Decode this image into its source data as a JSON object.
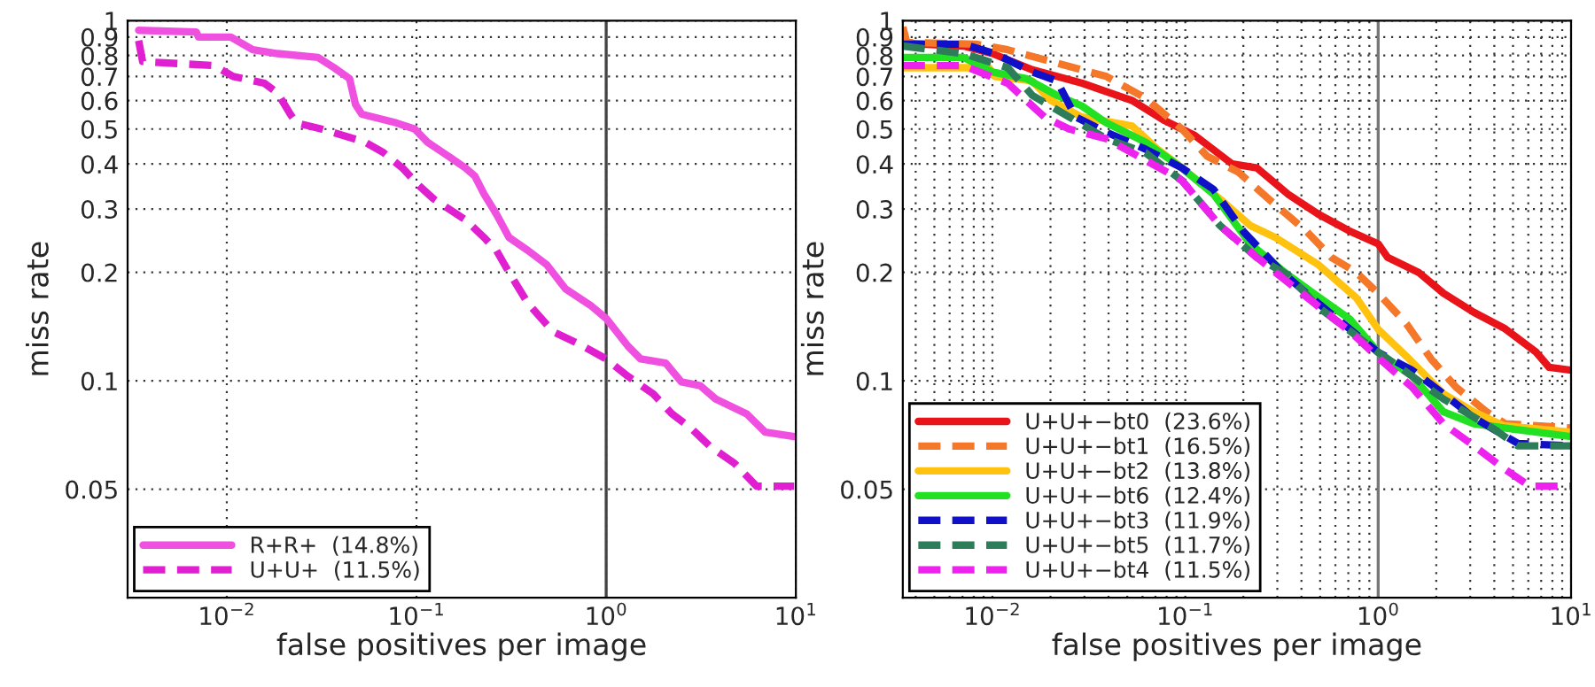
{
  "chart_data": [
    {
      "type": "line",
      "xlabel": "false positives per image",
      "ylabel": "miss rate",
      "log": "xy",
      "grid": true,
      "legend": "bottom left",
      "xlim": [
        0.003,
        10
      ],
      "ylim": [
        0.025,
        1
      ],
      "xticks": [
        {
          "value": 0.01,
          "label": "10$^{−2}$"
        },
        {
          "value": 0.1,
          "label": "10$^{−1}$"
        },
        {
          "value": 1,
          "label": "10$^{0}$"
        },
        {
          "value": 10,
          "label": "10$^{1}$"
        }
      ],
      "yticks": [
        0.05,
        0.1,
        0.2,
        0.3,
        0.4,
        0.5,
        0.6,
        0.7,
        0.8,
        0.9,
        1
      ],
      "ref_lines": [
        {
          "axis": "x",
          "value": 1,
          "color": "#444444",
          "line_style": "solid"
        }
      ],
      "series": [
        {
          "name": "R+R+  (14.8%)",
          "color": "#f050e0",
          "line_style": "solid",
          "x": [
            0.00343,
            0.0069,
            0.0071,
            0.0105,
            0.0137,
            0.0185,
            0.0303,
            0.0368,
            0.0444,
            0.0477,
            0.0515,
            0.0783,
            0.098,
            0.114,
            0.138,
            0.181,
            0.203,
            0.227,
            0.264,
            0.3075,
            0.387,
            0.486,
            0.61,
            0.827,
            1,
            1.3,
            1.52,
            2.06,
            2.49,
            3.13,
            3.78,
            5.5,
            6.9,
            9.8
          ],
          "values": [
            0.94,
            0.93,
            0.9,
            0.9,
            0.83,
            0.81,
            0.79,
            0.74,
            0.69,
            0.585,
            0.55,
            0.52,
            0.5,
            0.46,
            0.43,
            0.39,
            0.37,
            0.33,
            0.29,
            0.25,
            0.23,
            0.21,
            0.18,
            0.162,
            0.149,
            0.125,
            0.115,
            0.112,
            0.0993,
            0.097,
            0.089,
            0.081,
            0.072,
            0.07
          ]
        },
        {
          "name": "U+U+  (11.5%)",
          "color": "#e020d0",
          "line_style": "dashed",
          "x": [
            0.00343,
            0.0036,
            0.0086,
            0.0108,
            0.0158,
            0.0185,
            0.0216,
            0.0233,
            0.0316,
            0.0536,
            0.067,
            0.0843,
            0.102,
            0.123,
            0.181,
            0.227,
            0.264,
            0.3075,
            0.387,
            0.524,
            0.71,
            1,
            1.3,
            1.77,
            2.22,
            2.79,
            3.5,
            4.75,
            6.2,
            9.8
          ],
          "values": [
            0.88,
            0.77,
            0.75,
            0.7,
            0.67,
            0.63,
            0.55,
            0.52,
            0.5,
            0.46,
            0.43,
            0.39,
            0.35,
            0.32,
            0.28,
            0.25,
            0.23,
            0.2,
            0.164,
            0.137,
            0.127,
            0.115,
            0.103,
            0.092,
            0.081,
            0.074,
            0.066,
            0.059,
            0.051,
            0.051
          ]
        }
      ]
    },
    {
      "type": "line",
      "xlabel": "false positives per image",
      "ylabel": "miss rate",
      "log": "xy",
      "grid": true,
      "legend": "bottom left",
      "xlim": [
        0.00343,
        10
      ],
      "ylim": [
        0.025,
        1
      ],
      "xticks": [
        {
          "value": 0.004,
          "label": null
        },
        {
          "value": 0.005,
          "label": null
        },
        {
          "value": 0.006,
          "label": null
        },
        {
          "value": 0.007,
          "label": null
        },
        {
          "value": 0.008,
          "label": null
        },
        {
          "value": 0.009,
          "label": null
        },
        {
          "value": 0.01,
          "label": "10$^{−2}$"
        },
        {
          "value": 0.02,
          "label": null
        },
        {
          "value": 0.03,
          "label": null
        },
        {
          "value": 0.04,
          "label": null
        },
        {
          "value": 0.05,
          "label": null
        },
        {
          "value": 0.06,
          "label": null
        },
        {
          "value": 0.07,
          "label": null
        },
        {
          "value": 0.08,
          "label": null
        },
        {
          "value": 0.09,
          "label": null
        },
        {
          "value": 0.1,
          "label": "10$^{−1}$"
        },
        {
          "value": 0.2,
          "label": null
        },
        {
          "value": 0.3,
          "label": null
        },
        {
          "value": 0.4,
          "label": null
        },
        {
          "value": 0.5,
          "label": null
        },
        {
          "value": 0.6,
          "label": null
        },
        {
          "value": 0.7,
          "label": null
        },
        {
          "value": 0.8,
          "label": null
        },
        {
          "value": 0.9,
          "label": null
        },
        {
          "value": 1,
          "label": "10$^{0}$"
        },
        {
          "value": 2,
          "label": null
        },
        {
          "value": 3,
          "label": null
        },
        {
          "value": 4,
          "label": null
        },
        {
          "value": 5,
          "label": null
        },
        {
          "value": 6,
          "label": null
        },
        {
          "value": 7,
          "label": null
        },
        {
          "value": 8,
          "label": null
        },
        {
          "value": 9,
          "label": null
        },
        {
          "value": 10,
          "label": "10$^{1}$"
        }
      ],
      "yticks": [
        0.05,
        0.1,
        0.2,
        0.3,
        0.4,
        0.5,
        0.6,
        0.7,
        0.8,
        0.9,
        1
      ],
      "ref_lines": [
        {
          "axis": "x",
          "value": 1,
          "color": "#777777",
          "line_style": "solid"
        }
      ],
      "series": [
        {
          "name": "U+U+−bt0  (23.6%)",
          "color": "#e8141a",
          "line_style": "solid",
          "x": [
            0.00343,
            0.0071,
            0.01,
            0.0161,
            0.0216,
            0.0292,
            0.053,
            0.077,
            0.112,
            0.175,
            0.235,
            0.34,
            0.49,
            0.716,
            1,
            1.12,
            1.62,
            2.18,
            3.13,
            4.5,
            6.6,
            7.7,
            10
          ],
          "values": [
            0.865,
            0.85,
            0.81,
            0.73,
            0.7,
            0.67,
            0.6,
            0.53,
            0.48,
            0.4,
            0.39,
            0.33,
            0.29,
            0.26,
            0.24,
            0.22,
            0.2,
            0.175,
            0.155,
            0.14,
            0.12,
            0.109,
            0.107
          ]
        },
        {
          "name": "U+U+−bt1  (16.5%)",
          "color": "#f5782a",
          "line_style": "dashed",
          "x": [
            0.00343,
            0.0036,
            0.0082,
            0.012,
            0.0201,
            0.029,
            0.039,
            0.062,
            0.096,
            0.13,
            0.188,
            0.27,
            0.425,
            0.573,
            0.77,
            1,
            1.4,
            1.88,
            2.53,
            3.65,
            4.56,
            10
          ],
          "values": [
            0.96,
            0.87,
            0.86,
            0.83,
            0.77,
            0.73,
            0.7,
            0.61,
            0.5,
            0.42,
            0.38,
            0.32,
            0.26,
            0.22,
            0.2,
            0.175,
            0.144,
            0.115,
            0.096,
            0.082,
            0.076,
            0.074
          ]
        },
        {
          "name": "U+U+−bt2  (13.8%)",
          "color": "#ffc20e",
          "line_style": "solid",
          "x": [
            0.00343,
            0.0096,
            0.0103,
            0.0161,
            0.0201,
            0.029,
            0.053,
            0.0715,
            0.096,
            0.151,
            0.217,
            0.293,
            0.49,
            0.77,
            1,
            1.4,
            2.18,
            3.13,
            4.5,
            10
          ],
          "values": [
            0.74,
            0.74,
            0.7,
            0.68,
            0.6,
            0.54,
            0.51,
            0.44,
            0.39,
            0.32,
            0.27,
            0.25,
            0.21,
            0.17,
            0.139,
            0.117,
            0.092,
            0.082,
            0.075,
            0.072
          ]
        },
        {
          "name": "U+U+−bt6  (12.4%)",
          "color": "#22e022",
          "line_style": "solid",
          "x": [
            0.00343,
            0.0071,
            0.01,
            0.015,
            0.0216,
            0.029,
            0.039,
            0.062,
            0.096,
            0.14,
            0.217,
            0.34,
            0.49,
            0.716,
            1,
            1.5,
            2.18,
            3.13,
            4.5,
            10
          ],
          "values": [
            0.79,
            0.79,
            0.72,
            0.69,
            0.62,
            0.58,
            0.52,
            0.46,
            0.39,
            0.33,
            0.24,
            0.197,
            0.171,
            0.148,
            0.12,
            0.103,
            0.082,
            0.076,
            0.074,
            0.07
          ]
        },
        {
          "name": "U+U+−bt3  (11.9%)",
          "color": "#1010c8",
          "line_style": "dashed",
          "x": [
            0.00343,
            0.0071,
            0.0103,
            0.0161,
            0.0216,
            0.027,
            0.039,
            0.062,
            0.096,
            0.14,
            0.2,
            0.318,
            0.49,
            1,
            1.5,
            2.18,
            3.13,
            5.3,
            10
          ],
          "values": [
            0.86,
            0.86,
            0.81,
            0.72,
            0.68,
            0.54,
            0.49,
            0.44,
            0.39,
            0.34,
            0.26,
            0.2,
            0.164,
            0.12,
            0.107,
            0.092,
            0.079,
            0.067,
            0.066
          ]
        },
        {
          "name": "U+U+−bt5  (11.7%)",
          "color": "#2e7d5a",
          "line_style": "dashed",
          "x": [
            0.00343,
            0.0071,
            0.012,
            0.0161,
            0.025,
            0.039,
            0.062,
            0.096,
            0.151,
            0.235,
            0.34,
            0.49,
            1,
            1.5,
            2.18,
            3.9,
            5.3,
            10
          ],
          "values": [
            0.85,
            0.81,
            0.74,
            0.62,
            0.54,
            0.47,
            0.43,
            0.36,
            0.27,
            0.22,
            0.197,
            0.16,
            0.12,
            0.103,
            0.089,
            0.074,
            0.066,
            0.066
          ]
        },
        {
          "name": "U+U+−bt4  (11.5%)",
          "color": "#ee22ee",
          "line_style": "dashed",
          "x": [
            0.00343,
            0.0071,
            0.012,
            0.0186,
            0.025,
            0.039,
            0.062,
            0.096,
            0.151,
            0.235,
            0.424,
            0.716,
            1,
            1.5,
            2.18,
            3.13,
            4.5,
            6.1,
            10
          ],
          "values": [
            0.75,
            0.75,
            0.67,
            0.54,
            0.5,
            0.47,
            0.41,
            0.36,
            0.27,
            0.22,
            0.171,
            0.137,
            0.116,
            0.096,
            0.076,
            0.066,
            0.057,
            0.051,
            0.051
          ]
        }
      ]
    }
  ]
}
